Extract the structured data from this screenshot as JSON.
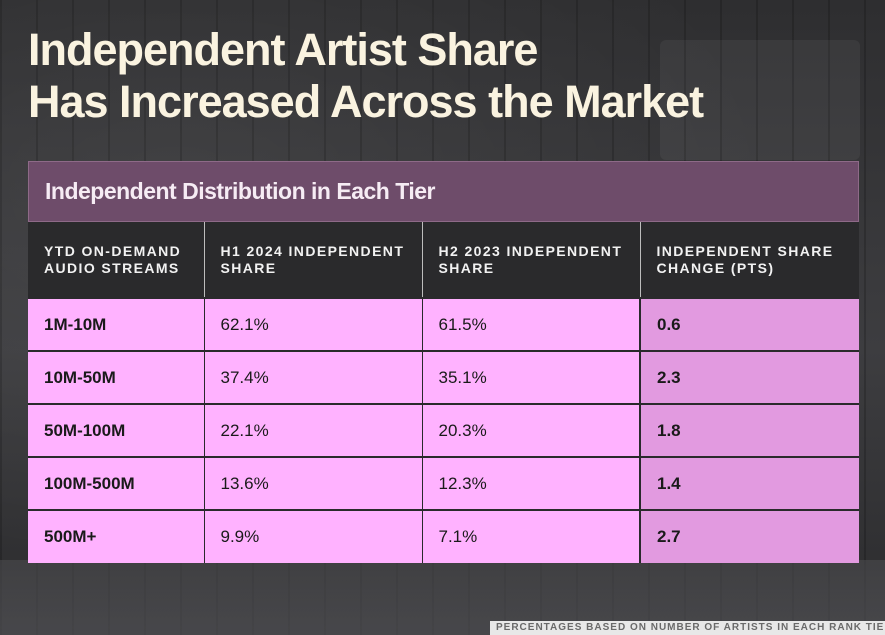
{
  "title": "Independent Artist Share\nHas Increased Across the Market",
  "footnote": "PERCENTAGES BASED ON NUMBER OF ARTISTS IN EACH RANK TIE",
  "chart_data": {
    "type": "table",
    "title": "Independent Distribution in Each Tier",
    "columns": [
      "YTD ON-DEMAND AUDIO STREAMS",
      "H1 2024 INDEPENDENT SHARE",
      "H2 2023 INDEPENDENT SHARE",
      "INDEPENDENT SHARE CHANGE (PTS)"
    ],
    "rows": [
      [
        "1M-10M",
        "62.1%",
        "61.5%",
        "0.6"
      ],
      [
        "10M-50M",
        "37.4%",
        "35.1%",
        "2.3"
      ],
      [
        "50M-100M",
        "22.1%",
        "20.3%",
        "1.8"
      ],
      [
        "100M-500M",
        "13.6%",
        "12.3%",
        "1.4"
      ],
      [
        "500M+",
        "9.9%",
        "7.1%",
        "2.7"
      ]
    ],
    "colors": {
      "header_band": "#6e4c6a",
      "row_fill": "#ffb2ff",
      "change_fill": "#e29ae0",
      "column_header_fill": "#2a2a2c"
    }
  }
}
